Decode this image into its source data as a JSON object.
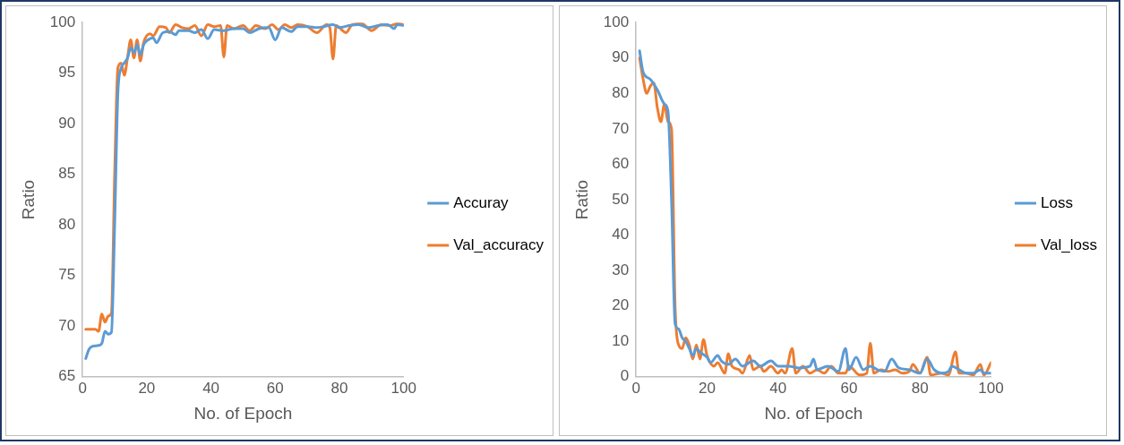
{
  "chart_data": [
    {
      "type": "line",
      "xlabel": "No. of Epoch",
      "ylabel": "Ratio",
      "xlim": [
        0,
        100
      ],
      "xticks": [
        0,
        20,
        40,
        60,
        80,
        100
      ],
      "ylim": [
        65,
        100
      ],
      "yticks": [
        65,
        70,
        75,
        80,
        85,
        90,
        95,
        100
      ],
      "grid": false,
      "legend": "right",
      "marker": "none",
      "line_style": "solid",
      "series": [
        {
          "name": "Accuray",
          "color": "#5b9bd5",
          "x": [
            1,
            2,
            3,
            5,
            6,
            7,
            8,
            9,
            10,
            11,
            12,
            13,
            14,
            15,
            16,
            17,
            18,
            19,
            20,
            22,
            23,
            25,
            27,
            29,
            30,
            33,
            35,
            37,
            39,
            41,
            44,
            47,
            50,
            52,
            55,
            58,
            60,
            62,
            65,
            67,
            70,
            73,
            75,
            78,
            80,
            83,
            86,
            89,
            92,
            95,
            97,
            98,
            100
          ],
          "values": [
            66.8,
            67.7,
            68.0,
            68.1,
            68.3,
            69.5,
            69.2,
            69.4,
            80,
            93,
            95.5,
            96,
            96.5,
            97.5,
            97,
            97.8,
            96.8,
            97.8,
            98.2,
            98.5,
            98,
            99,
            99.1,
            98.8,
            99.2,
            99.2,
            99,
            99.3,
            98.4,
            99.3,
            99.2,
            99.4,
            99.4,
            99.0,
            99.4,
            99.5,
            98.3,
            99.5,
            99.1,
            99.6,
            99.6,
            99.5,
            99.6,
            99.8,
            99.5,
            99.7,
            99.8,
            99.5,
            99.7,
            99.8,
            99.4,
            99.8,
            99.7
          ]
        },
        {
          "name": "Val_accuracy",
          "color": "#ed7d31",
          "x": [
            1,
            4,
            5,
            6,
            7,
            8,
            9,
            10,
            11,
            12,
            13,
            14,
            15,
            16,
            17,
            18,
            19,
            21,
            22,
            24,
            26,
            27,
            29,
            31,
            33,
            35,
            37,
            39,
            41,
            43,
            44,
            45,
            47,
            50,
            52,
            54,
            57,
            59,
            61,
            63,
            65,
            67,
            70,
            73,
            76,
            77,
            78,
            79,
            81,
            82,
            84,
            87,
            90,
            93,
            96,
            98,
            100
          ],
          "values": [
            69.7,
            69.7,
            69.5,
            71.2,
            70.4,
            71.0,
            71.3,
            85,
            95.5,
            96,
            94.8,
            96.5,
            98.3,
            96.5,
            98.3,
            96.2,
            98,
            98.9,
            98.7,
            99.6,
            99.5,
            99,
            99.8,
            99.5,
            99.4,
            99.7,
            98.7,
            99.8,
            99.6,
            99.7,
            96.6,
            99.7,
            99.4,
            99.7,
            99.2,
            99.7,
            99.4,
            99.8,
            99.3,
            99.8,
            99.5,
            99.8,
            99.6,
            99.0,
            99.8,
            99.5,
            96.4,
            99.7,
            99.2,
            99.0,
            99.8,
            99.9,
            99.2,
            99.8,
            99.7,
            99.9,
            99.8
          ]
        }
      ]
    },
    {
      "type": "line",
      "xlabel": "No. of Epoch",
      "ylabel": "Ratio",
      "xlim": [
        0,
        100
      ],
      "xticks": [
        0,
        20,
        40,
        60,
        80,
        100
      ],
      "ylim": [
        0,
        100
      ],
      "yticks": [
        0,
        10,
        20,
        30,
        40,
        50,
        60,
        70,
        80,
        90,
        100
      ],
      "grid": false,
      "legend": "right",
      "marker": "none",
      "line_style": "solid",
      "series": [
        {
          "name": "Loss",
          "color": "#5b9bd5",
          "x": [
            1,
            2,
            4,
            6,
            8,
            9,
            10,
            11,
            12,
            13,
            14,
            15,
            16,
            17,
            18,
            20,
            21,
            23,
            24,
            26,
            28,
            30,
            33,
            35,
            38,
            40,
            43,
            46,
            49,
            50,
            51,
            54,
            57,
            59,
            60,
            62,
            64,
            66,
            68,
            70,
            72,
            74,
            77,
            80,
            82,
            84,
            86,
            88,
            89,
            91,
            93,
            95,
            97,
            98,
            100
          ],
          "values": [
            92,
            86,
            84,
            81,
            77,
            75,
            50,
            15,
            13.5,
            11,
            10,
            8,
            6,
            8,
            7,
            5.5,
            4,
            6,
            4.5,
            3.5,
            5,
            3,
            4.5,
            3,
            4.5,
            3,
            3,
            2.5,
            3,
            5,
            2,
            3,
            1.5,
            8,
            2,
            5.5,
            2,
            3,
            2,
            1.5,
            5,
            2.5,
            2,
            1,
            5,
            2,
            1,
            1.5,
            3,
            2,
            1,
            1,
            2,
            1,
            1
          ]
        },
        {
          "name": "Val_loss",
          "color": "#ed7d31",
          "x": [
            1,
            2,
            3,
            4,
            5,
            6,
            7,
            8,
            9,
            10,
            11,
            12,
            13,
            14,
            15,
            16,
            17,
            18,
            19,
            20,
            22,
            23,
            25,
            26,
            27,
            29,
            30,
            32,
            33,
            35,
            36,
            38,
            40,
            41,
            42,
            44,
            45,
            47,
            49,
            51,
            53,
            55,
            57,
            59,
            60,
            63,
            65,
            66,
            67,
            69,
            71,
            73,
            75,
            77,
            78,
            80,
            82,
            83,
            86,
            88,
            90,
            91,
            93,
            95,
            97,
            98,
            100
          ],
          "values": [
            90,
            84,
            80,
            82,
            83,
            76,
            72,
            77,
            72,
            70,
            20,
            9,
            8,
            11,
            9,
            5,
            9,
            5,
            10.5,
            6,
            3,
            4,
            1,
            6.5,
            3,
            2,
            1,
            6,
            2,
            3,
            1.5,
            3,
            1,
            2,
            1,
            8,
            1,
            3,
            1,
            2,
            1,
            3,
            1,
            1,
            3,
            0.5,
            1,
            9.5,
            1,
            2,
            1.5,
            2,
            1,
            1.5,
            3.5,
            1,
            5.5,
            0.5,
            1,
            0.5,
            7,
            1,
            1,
            0.5,
            3.5,
            0.5,
            4
          ]
        }
      ]
    }
  ]
}
